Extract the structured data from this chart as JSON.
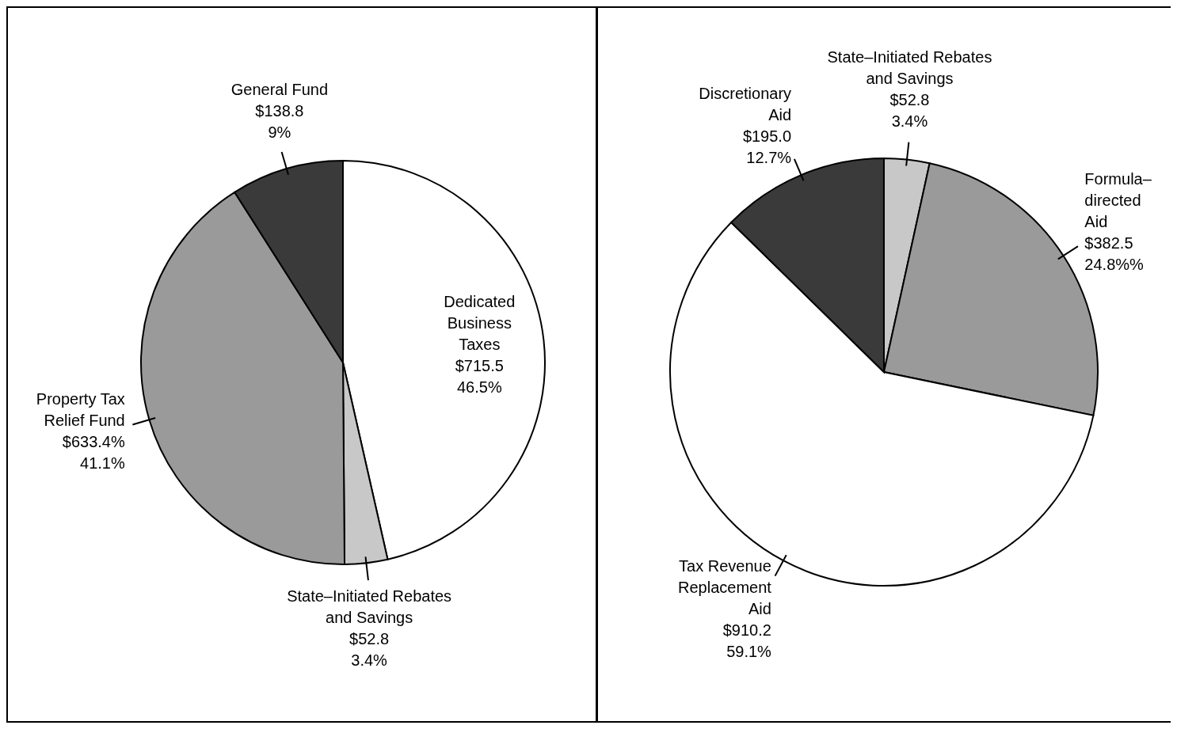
{
  "chart_data": [
    {
      "type": "pie",
      "categories": [
        "Dedicated\nBusiness\nTaxes",
        "State–Initiated   Rebates\nand Savings",
        "Property Tax\nRelief Fund",
        "General Fund"
      ],
      "values": [
        715.5,
        52.8,
        633.4,
        138.8
      ],
      "value_labels": [
        "$715.5\n46.5%",
        "$52.8\n3.4%",
        "$633.4%\n41.1%",
        "$138.8\n9%"
      ],
      "colors": [
        "#ffffff",
        "#c8c8c8",
        "#9a9a9a",
        "#3a3a3a"
      ]
    },
    {
      "type": "pie",
      "categories": [
        "State–Initiated   Rebates\nand Savings",
        "Formula–\ndirected\nAid",
        "Tax Revenue\nReplacement\nAid",
        "Discretionary\nAid"
      ],
      "values": [
        52.8,
        382.5,
        910.2,
        195.0
      ],
      "value_labels": [
        "$52.8\n3.4%",
        "$382.5\n24.8%%",
        "$910.2\n59.1%",
        "$195.0\n12.7%"
      ],
      "colors": [
        "#c8c8c8",
        "#9a9a9a",
        "#ffffff",
        "#3a3a3a"
      ]
    }
  ]
}
